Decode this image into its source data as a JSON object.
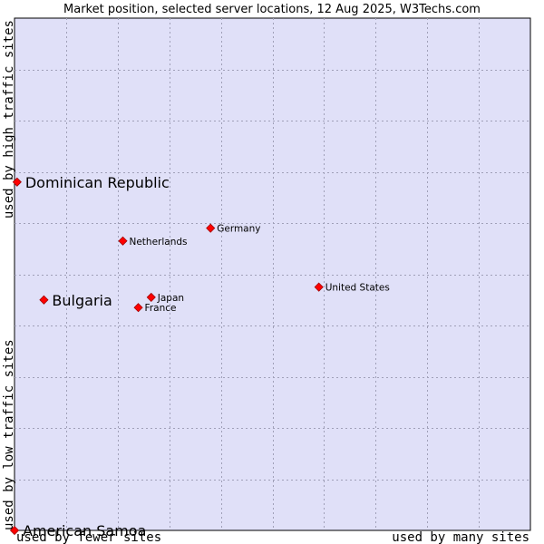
{
  "chart_data": {
    "type": "scatter",
    "title": "Market position, selected server locations, 12 Aug 2025, W3Techs.com",
    "xlabel_left": "used by fewer sites",
    "xlabel_right": "used by many sites",
    "ylabel_bottom": "used by low traffic sites",
    "ylabel_top": "used by high traffic sites",
    "xlim": [
      0,
      10
    ],
    "ylim": [
      0,
      10
    ],
    "grid": true,
    "point_color": "#ff0000",
    "points": [
      {
        "name": "Dominican Republic",
        "x": 0.05,
        "y": 6.8,
        "emphasis": true
      },
      {
        "name": "Bulgaria",
        "x": 0.57,
        "y": 4.5,
        "emphasis": true
      },
      {
        "name": "American Samoa",
        "x": 0.0,
        "y": 0.0,
        "emphasis": true
      },
      {
        "name": "Germany",
        "x": 3.8,
        "y": 5.9,
        "emphasis": false
      },
      {
        "name": "Netherlands",
        "x": 2.1,
        "y": 5.65,
        "emphasis": false
      },
      {
        "name": "Japan",
        "x": 2.65,
        "y": 4.55,
        "emphasis": false
      },
      {
        "name": "France",
        "x": 2.4,
        "y": 4.35,
        "emphasis": false
      },
      {
        "name": "United States",
        "x": 5.9,
        "y": 4.75,
        "emphasis": false
      }
    ]
  }
}
